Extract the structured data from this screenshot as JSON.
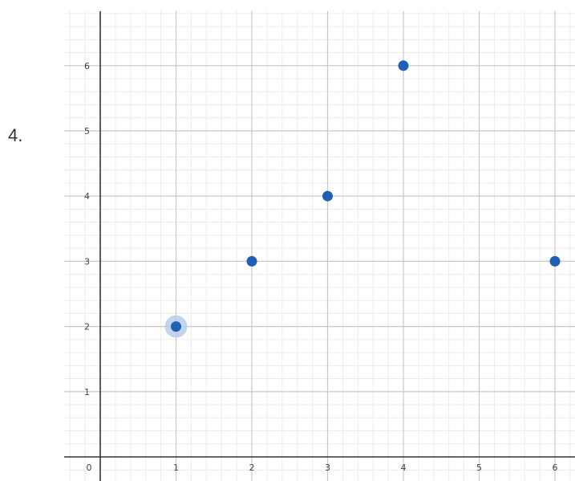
{
  "problem_number": "4.",
  "chart_data": {
    "type": "scatter",
    "title": "",
    "xlabel": "",
    "ylabel": "",
    "xlim": [
      0,
      6.2
    ],
    "ylim": [
      0,
      6.8
    ],
    "x_ticks": [
      "0",
      "1",
      "2",
      "3",
      "4",
      "5",
      "6"
    ],
    "y_ticks": [
      "1",
      "2",
      "3",
      "4",
      "5",
      "6"
    ],
    "grid": true,
    "points": [
      {
        "x": 1,
        "y": 2,
        "highlighted": true
      },
      {
        "x": 2,
        "y": 3
      },
      {
        "x": 3,
        "y": 4
      },
      {
        "x": 4,
        "y": 6
      },
      {
        "x": 6,
        "y": 3
      }
    ],
    "colors": {
      "point": "#1f5fb4",
      "highlight": "#b9cdea",
      "major_grid": "#c8c8c8",
      "minor_grid": "#ececec",
      "axis": "#333333"
    }
  }
}
